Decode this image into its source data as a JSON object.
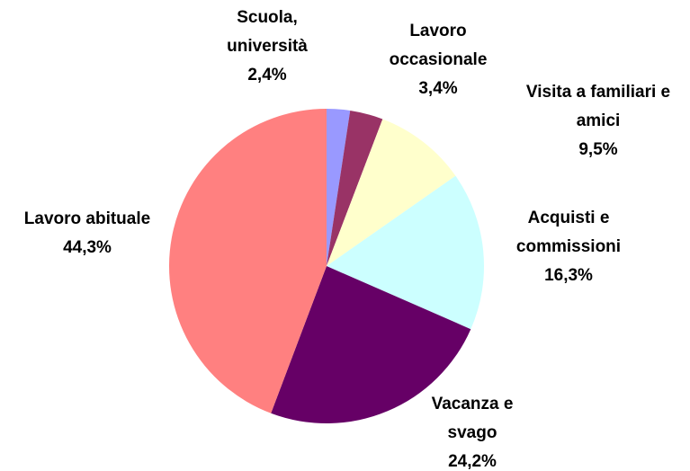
{
  "chart_data": {
    "type": "pie",
    "categories": [
      "Scuola, università",
      "Lavoro occasionale",
      "Visita a familiari e amici",
      "Acquisti e commissioni",
      "Vacanza e svago",
      "Lavoro abituale"
    ],
    "values": [
      2.4,
      3.4,
      9.5,
      16.3,
      24.2,
      44.3
    ],
    "value_labels": [
      "2,4%",
      "3,4%",
      "9,5%",
      "16,3%",
      "24,2%",
      "44,3%"
    ],
    "colors": [
      "#9999ff",
      "#993366",
      "#ffffcc",
      "#ccffff",
      "#660066",
      "#ff8080"
    ]
  }
}
